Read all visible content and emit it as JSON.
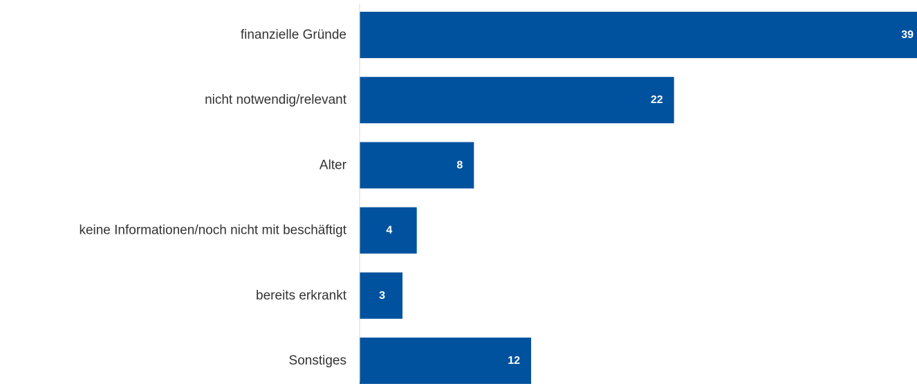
{
  "chart_data": {
    "type": "bar",
    "orientation": "horizontal",
    "categories": [
      "finanzielle Gründe",
      "nicht notwendig/relevant",
      "Alter",
      "keine Informationen/noch nicht mit beschäftigt",
      "bereits erkrankt",
      "Sonstiges"
    ],
    "values": [
      39,
      22,
      8,
      4,
      3,
      12
    ],
    "data_labels": [
      "39",
      "22",
      "8",
      "4",
      "3",
      "12"
    ],
    "title": "",
    "xlabel": "",
    "ylabel": "",
    "xlim": [
      0,
      39
    ],
    "grid": false,
    "legend": "none",
    "bar_color": "#00529F",
    "axis_color": "#D9D9D9",
    "label_color": "#333333",
    "data_label_color": "#FFFFFF"
  }
}
